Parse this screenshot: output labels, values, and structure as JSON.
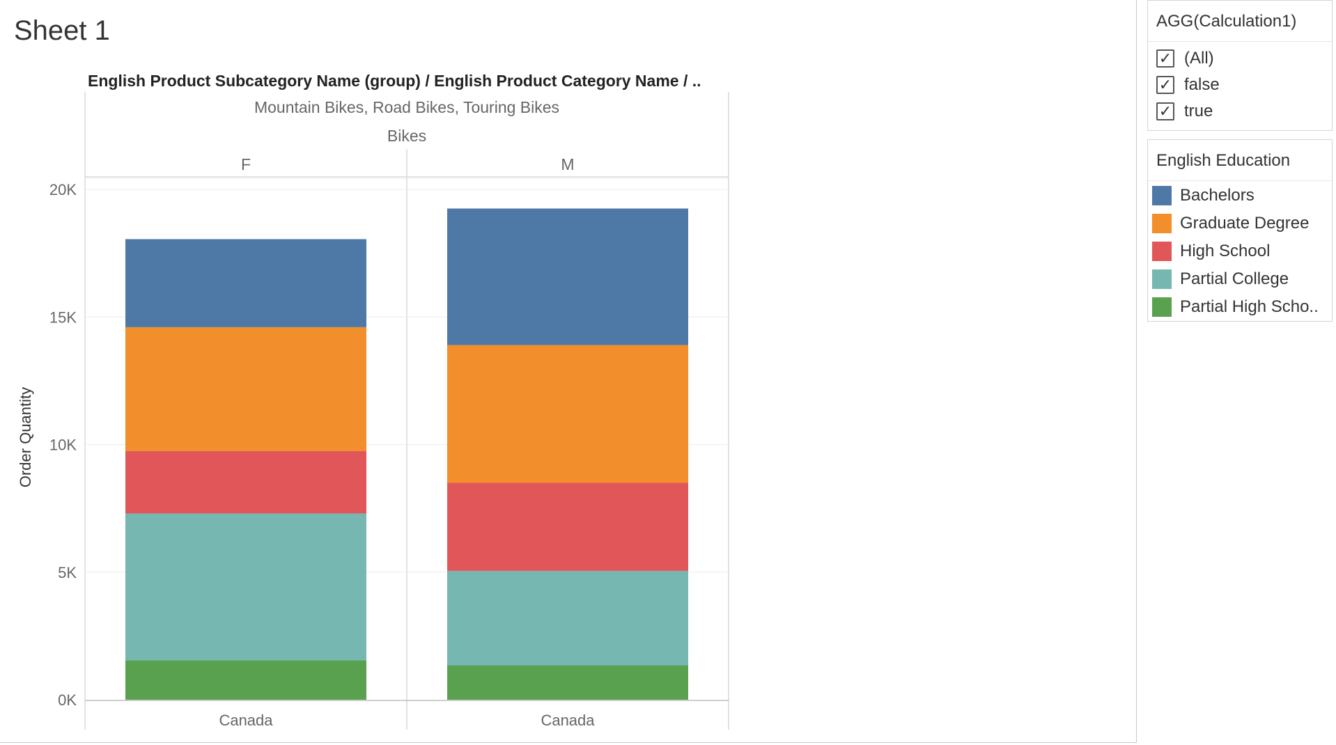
{
  "sheet": {
    "title": "Sheet 1"
  },
  "header": {
    "field_path": "English Product Subcategory Name (group)  /  English Product Category Name  /  ..",
    "subcategory_group": "Mountain Bikes, Road Bikes, Touring Bikes",
    "category": "Bikes",
    "panes": [
      "F",
      "M"
    ]
  },
  "filter": {
    "title": "AGG(Calculation1)",
    "items": [
      {
        "label": "(All)",
        "checked": true
      },
      {
        "label": "false",
        "checked": true
      },
      {
        "label": "true",
        "checked": true
      }
    ]
  },
  "legend": {
    "title": "English Education",
    "items": [
      {
        "label": "Bachelors",
        "color": "#4e79a7"
      },
      {
        "label": "Graduate Degree",
        "color": "#f28e2b"
      },
      {
        "label": "High School",
        "color": "#e15759"
      },
      {
        "label": "Partial College",
        "color": "#76b7b2"
      },
      {
        "label": "Partial High Scho..",
        "color": "#59a14f"
      }
    ]
  },
  "chart_data": {
    "type": "bar",
    "stacked": true,
    "ylabel": "Order Quantity",
    "ylim": [
      0,
      20000
    ],
    "yticks": [
      {
        "value": 0,
        "label": "0K"
      },
      {
        "value": 5000,
        "label": "5K"
      },
      {
        "value": 10000,
        "label": "10K"
      },
      {
        "value": 15000,
        "label": "15K"
      },
      {
        "value": 20000,
        "label": "20K"
      }
    ],
    "panes": [
      {
        "gender": "F",
        "categories": [
          "Canada"
        ]
      },
      {
        "gender": "M",
        "categories": [
          "Canada"
        ]
      }
    ],
    "series": [
      {
        "name": "Partial High Scho..",
        "color": "#59a14f",
        "values": [
          1550,
          1350
        ]
      },
      {
        "name": "Partial College",
        "color": "#76b7b2",
        "values": [
          5750,
          3700
        ]
      },
      {
        "name": "High School",
        "color": "#e15759",
        "values": [
          2450,
          3450
        ]
      },
      {
        "name": "Graduate Degree",
        "color": "#f28e2b",
        "values": [
          4850,
          5400
        ]
      },
      {
        "name": "Bachelors",
        "color": "#4e79a7",
        "values": [
          3450,
          5350
        ]
      }
    ],
    "grid": true
  }
}
